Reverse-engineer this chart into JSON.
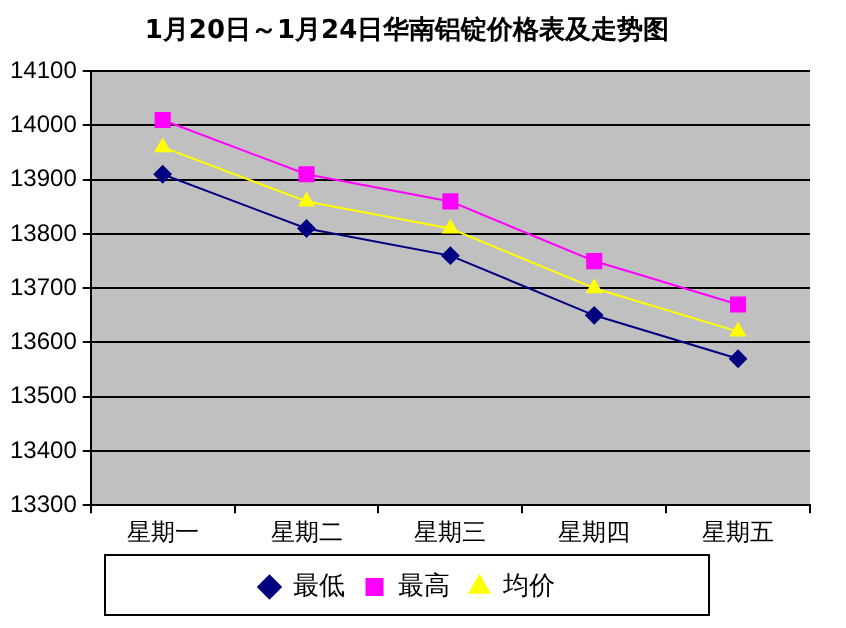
{
  "chart_data": {
    "type": "line",
    "title": "1月20日～1月24日华南铝锭价格表及走势图",
    "categories": [
      "星期一",
      "星期二",
      "星期三",
      "星期四",
      "星期五"
    ],
    "series": [
      {
        "name": "最低",
        "color": "#000080",
        "marker": "diamond",
        "values": [
          13910,
          13810,
          13760,
          13650,
          13570
        ]
      },
      {
        "name": "最高",
        "color": "#ff00ff",
        "marker": "square",
        "values": [
          14010,
          13910,
          13860,
          13750,
          13670
        ]
      },
      {
        "name": "均价",
        "color": "#ffff00",
        "marker": "triangle",
        "values": [
          13960,
          13860,
          13810,
          13700,
          13620
        ]
      }
    ],
    "ylim": [
      13300,
      14100
    ],
    "yticks": [
      13300,
      13400,
      13500,
      13600,
      13700,
      13800,
      13900,
      14000,
      14100
    ],
    "grid": "y",
    "legend": "bottom",
    "line_style": "solid"
  }
}
